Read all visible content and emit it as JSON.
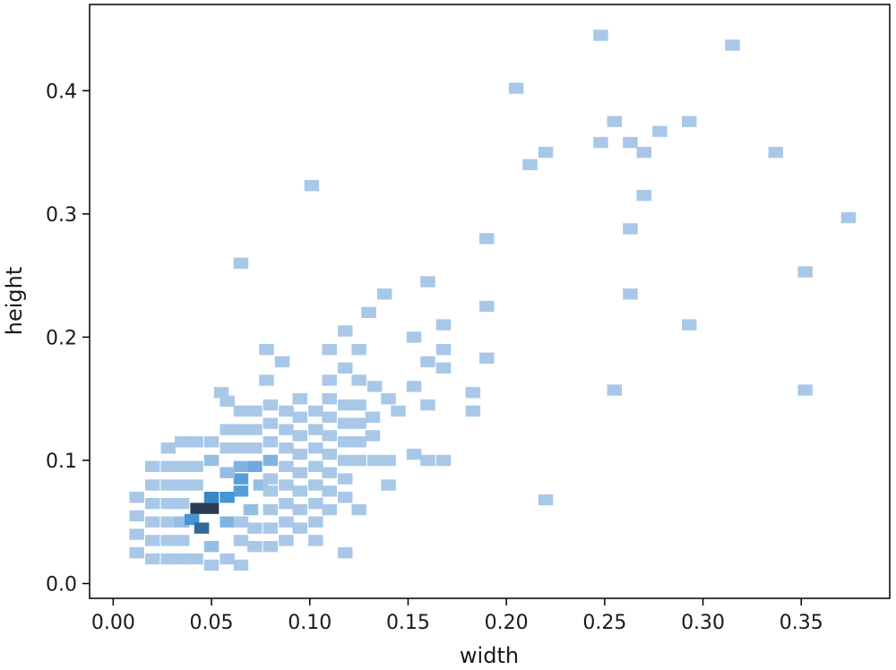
{
  "chart_data": {
    "type": "heatmap",
    "subtype": "bivariate-histogram",
    "title": "",
    "xlabel": "width",
    "ylabel": "height",
    "xlim": [
      -0.012,
      0.395
    ],
    "ylim": [
      -0.012,
      0.47
    ],
    "xticks": [
      0.0,
      0.05,
      0.1,
      0.15,
      0.2,
      0.25,
      0.3,
      0.35
    ],
    "xtick_labels": [
      "0.00",
      "0.05",
      "0.10",
      "0.15",
      "0.20",
      "0.25",
      "0.30",
      "0.35"
    ],
    "yticks": [
      0.0,
      0.1,
      0.2,
      0.3,
      0.4
    ],
    "ytick_labels": [
      "0.0",
      "0.1",
      "0.2",
      "0.3",
      "0.4"
    ],
    "bin_size": {
      "width": 0.0075,
      "height": 0.009
    },
    "grid": false,
    "legend": false,
    "colormap": {
      "low": "#a9c8e8",
      "mid": "#3a8fd4",
      "high": "#2b3a55"
    },
    "cells": [
      {
        "x": 0.012,
        "y": 0.025,
        "count": 1
      },
      {
        "x": 0.012,
        "y": 0.04,
        "count": 1
      },
      {
        "x": 0.012,
        "y": 0.055,
        "count": 1
      },
      {
        "x": 0.012,
        "y": 0.07,
        "count": 1
      },
      {
        "x": 0.02,
        "y": 0.02,
        "count": 1
      },
      {
        "x": 0.02,
        "y": 0.035,
        "count": 1
      },
      {
        "x": 0.02,
        "y": 0.05,
        "count": 1
      },
      {
        "x": 0.02,
        "y": 0.065,
        "count": 1
      },
      {
        "x": 0.02,
        "y": 0.08,
        "count": 1
      },
      {
        "x": 0.02,
        "y": 0.095,
        "count": 1
      },
      {
        "x": 0.028,
        "y": 0.02,
        "count": 1
      },
      {
        "x": 0.028,
        "y": 0.035,
        "count": 1
      },
      {
        "x": 0.028,
        "y": 0.05,
        "count": 1
      },
      {
        "x": 0.028,
        "y": 0.065,
        "count": 1
      },
      {
        "x": 0.028,
        "y": 0.08,
        "count": 1
      },
      {
        "x": 0.028,
        "y": 0.095,
        "count": 1
      },
      {
        "x": 0.028,
        "y": 0.11,
        "count": 1
      },
      {
        "x": 0.035,
        "y": 0.02,
        "count": 1
      },
      {
        "x": 0.035,
        "y": 0.035,
        "count": 1
      },
      {
        "x": 0.035,
        "y": 0.05,
        "count": 2
      },
      {
        "x": 0.035,
        "y": 0.065,
        "count": 1
      },
      {
        "x": 0.035,
        "y": 0.08,
        "count": 1
      },
      {
        "x": 0.035,
        "y": 0.095,
        "count": 1
      },
      {
        "x": 0.035,
        "y": 0.115,
        "count": 1
      },
      {
        "x": 0.04,
        "y": 0.052,
        "count": 6
      },
      {
        "x": 0.045,
        "y": 0.045,
        "count": 9
      },
      {
        "x": 0.043,
        "y": 0.061,
        "count": 12
      },
      {
        "x": 0.05,
        "y": 0.061,
        "count": 12
      },
      {
        "x": 0.05,
        "y": 0.07,
        "count": 7
      },
      {
        "x": 0.058,
        "y": 0.07,
        "count": 6
      },
      {
        "x": 0.058,
        "y": 0.05,
        "count": 3
      },
      {
        "x": 0.065,
        "y": 0.075,
        "count": 5
      },
      {
        "x": 0.065,
        "y": 0.085,
        "count": 5
      },
      {
        "x": 0.072,
        "y": 0.095,
        "count": 4
      },
      {
        "x": 0.065,
        "y": 0.095,
        "count": 3
      },
      {
        "x": 0.08,
        "y": 0.1,
        "count": 3
      },
      {
        "x": 0.05,
        "y": 0.03,
        "count": 2
      },
      {
        "x": 0.05,
        "y": 0.1,
        "count": 2
      },
      {
        "x": 0.058,
        "y": 0.09,
        "count": 2
      },
      {
        "x": 0.07,
        "y": 0.06,
        "count": 2
      },
      {
        "x": 0.075,
        "y": 0.08,
        "count": 2
      },
      {
        "x": 0.042,
        "y": 0.02,
        "count": 1
      },
      {
        "x": 0.05,
        "y": 0.015,
        "count": 1
      },
      {
        "x": 0.058,
        "y": 0.02,
        "count": 1
      },
      {
        "x": 0.065,
        "y": 0.015,
        "count": 1
      },
      {
        "x": 0.042,
        "y": 0.08,
        "count": 1
      },
      {
        "x": 0.042,
        "y": 0.095,
        "count": 1
      },
      {
        "x": 0.042,
        "y": 0.115,
        "count": 1
      },
      {
        "x": 0.05,
        "y": 0.115,
        "count": 1
      },
      {
        "x": 0.058,
        "y": 0.11,
        "count": 1
      },
      {
        "x": 0.058,
        "y": 0.125,
        "count": 1
      },
      {
        "x": 0.065,
        "y": 0.035,
        "count": 1
      },
      {
        "x": 0.065,
        "y": 0.05,
        "count": 1
      },
      {
        "x": 0.065,
        "y": 0.11,
        "count": 1
      },
      {
        "x": 0.065,
        "y": 0.125,
        "count": 1
      },
      {
        "x": 0.065,
        "y": 0.14,
        "count": 1
      },
      {
        "x": 0.072,
        "y": 0.03,
        "count": 1
      },
      {
        "x": 0.072,
        "y": 0.045,
        "count": 1
      },
      {
        "x": 0.072,
        "y": 0.11,
        "count": 1
      },
      {
        "x": 0.072,
        "y": 0.125,
        "count": 1
      },
      {
        "x": 0.072,
        "y": 0.14,
        "count": 1
      },
      {
        "x": 0.08,
        "y": 0.03,
        "count": 1
      },
      {
        "x": 0.08,
        "y": 0.045,
        "count": 1
      },
      {
        "x": 0.08,
        "y": 0.06,
        "count": 1
      },
      {
        "x": 0.08,
        "y": 0.075,
        "count": 1
      },
      {
        "x": 0.08,
        "y": 0.085,
        "count": 1
      },
      {
        "x": 0.08,
        "y": 0.115,
        "count": 1
      },
      {
        "x": 0.08,
        "y": 0.13,
        "count": 1
      },
      {
        "x": 0.08,
        "y": 0.145,
        "count": 1
      },
      {
        "x": 0.088,
        "y": 0.035,
        "count": 1
      },
      {
        "x": 0.088,
        "y": 0.05,
        "count": 1
      },
      {
        "x": 0.088,
        "y": 0.065,
        "count": 1
      },
      {
        "x": 0.088,
        "y": 0.08,
        "count": 1
      },
      {
        "x": 0.088,
        "y": 0.095,
        "count": 1
      },
      {
        "x": 0.088,
        "y": 0.11,
        "count": 1
      },
      {
        "x": 0.088,
        "y": 0.125,
        "count": 1
      },
      {
        "x": 0.088,
        "y": 0.14,
        "count": 1
      },
      {
        "x": 0.095,
        "y": 0.045,
        "count": 1
      },
      {
        "x": 0.095,
        "y": 0.06,
        "count": 1
      },
      {
        "x": 0.095,
        "y": 0.075,
        "count": 1
      },
      {
        "x": 0.095,
        "y": 0.09,
        "count": 1
      },
      {
        "x": 0.095,
        "y": 0.105,
        "count": 1
      },
      {
        "x": 0.095,
        "y": 0.12,
        "count": 1
      },
      {
        "x": 0.095,
        "y": 0.135,
        "count": 1
      },
      {
        "x": 0.095,
        "y": 0.15,
        "count": 1
      },
      {
        "x": 0.103,
        "y": 0.035,
        "count": 1
      },
      {
        "x": 0.103,
        "y": 0.05,
        "count": 1
      },
      {
        "x": 0.103,
        "y": 0.065,
        "count": 1
      },
      {
        "x": 0.103,
        "y": 0.08,
        "count": 1
      },
      {
        "x": 0.103,
        "y": 0.095,
        "count": 1
      },
      {
        "x": 0.103,
        "y": 0.11,
        "count": 1
      },
      {
        "x": 0.103,
        "y": 0.125,
        "count": 1
      },
      {
        "x": 0.103,
        "y": 0.14,
        "count": 1
      },
      {
        "x": 0.11,
        "y": 0.06,
        "count": 1
      },
      {
        "x": 0.11,
        "y": 0.075,
        "count": 1
      },
      {
        "x": 0.11,
        "y": 0.09,
        "count": 1
      },
      {
        "x": 0.11,
        "y": 0.105,
        "count": 1
      },
      {
        "x": 0.11,
        "y": 0.12,
        "count": 1
      },
      {
        "x": 0.11,
        "y": 0.135,
        "count": 1
      },
      {
        "x": 0.11,
        "y": 0.15,
        "count": 1
      },
      {
        "x": 0.118,
        "y": 0.07,
        "count": 1
      },
      {
        "x": 0.118,
        "y": 0.085,
        "count": 1
      },
      {
        "x": 0.118,
        "y": 0.1,
        "count": 1
      },
      {
        "x": 0.118,
        "y": 0.115,
        "count": 1
      },
      {
        "x": 0.118,
        "y": 0.13,
        "count": 1
      },
      {
        "x": 0.118,
        "y": 0.145,
        "count": 1
      },
      {
        "x": 0.125,
        "y": 0.115,
        "count": 1
      },
      {
        "x": 0.125,
        "y": 0.13,
        "count": 1
      },
      {
        "x": 0.125,
        "y": 0.145,
        "count": 1
      },
      {
        "x": 0.132,
        "y": 0.12,
        "count": 1
      },
      {
        "x": 0.132,
        "y": 0.135,
        "count": 1
      },
      {
        "x": 0.065,
        "y": 0.26,
        "count": 1
      },
      {
        "x": 0.101,
        "y": 0.323,
        "count": 1
      },
      {
        "x": 0.055,
        "y": 0.155,
        "count": 1
      },
      {
        "x": 0.058,
        "y": 0.148,
        "count": 1
      },
      {
        "x": 0.078,
        "y": 0.19,
        "count": 1
      },
      {
        "x": 0.078,
        "y": 0.165,
        "count": 1
      },
      {
        "x": 0.086,
        "y": 0.18,
        "count": 1
      },
      {
        "x": 0.11,
        "y": 0.19,
        "count": 1
      },
      {
        "x": 0.118,
        "y": 0.205,
        "count": 1
      },
      {
        "x": 0.125,
        "y": 0.19,
        "count": 1
      },
      {
        "x": 0.118,
        "y": 0.175,
        "count": 1
      },
      {
        "x": 0.11,
        "y": 0.165,
        "count": 1
      },
      {
        "x": 0.125,
        "y": 0.165,
        "count": 1
      },
      {
        "x": 0.133,
        "y": 0.16,
        "count": 1
      },
      {
        "x": 0.13,
        "y": 0.22,
        "count": 1
      },
      {
        "x": 0.138,
        "y": 0.235,
        "count": 1
      },
      {
        "x": 0.14,
        "y": 0.15,
        "count": 1
      },
      {
        "x": 0.145,
        "y": 0.14,
        "count": 1
      },
      {
        "x": 0.153,
        "y": 0.16,
        "count": 1
      },
      {
        "x": 0.153,
        "y": 0.2,
        "count": 1
      },
      {
        "x": 0.16,
        "y": 0.245,
        "count": 1
      },
      {
        "x": 0.16,
        "y": 0.18,
        "count": 1
      },
      {
        "x": 0.16,
        "y": 0.145,
        "count": 1
      },
      {
        "x": 0.168,
        "y": 0.19,
        "count": 1
      },
      {
        "x": 0.168,
        "y": 0.21,
        "count": 1
      },
      {
        "x": 0.168,
        "y": 0.175,
        "count": 1
      },
      {
        "x": 0.183,
        "y": 0.155,
        "count": 1
      },
      {
        "x": 0.183,
        "y": 0.14,
        "count": 1
      },
      {
        "x": 0.125,
        "y": 0.06,
        "count": 1
      },
      {
        "x": 0.125,
        "y": 0.1,
        "count": 1
      },
      {
        "x": 0.133,
        "y": 0.1,
        "count": 1
      },
      {
        "x": 0.14,
        "y": 0.1,
        "count": 1
      },
      {
        "x": 0.14,
        "y": 0.08,
        "count": 1
      },
      {
        "x": 0.153,
        "y": 0.105,
        "count": 1
      },
      {
        "x": 0.16,
        "y": 0.1,
        "count": 1
      },
      {
        "x": 0.168,
        "y": 0.1,
        "count": 1
      },
      {
        "x": 0.118,
        "y": 0.025,
        "count": 1
      },
      {
        "x": 0.19,
        "y": 0.28,
        "count": 1
      },
      {
        "x": 0.19,
        "y": 0.225,
        "count": 1
      },
      {
        "x": 0.19,
        "y": 0.183,
        "count": 1
      },
      {
        "x": 0.205,
        "y": 0.402,
        "count": 1
      },
      {
        "x": 0.212,
        "y": 0.34,
        "count": 1
      },
      {
        "x": 0.22,
        "y": 0.35,
        "count": 1
      },
      {
        "x": 0.22,
        "y": 0.068,
        "count": 1
      },
      {
        "x": 0.248,
        "y": 0.445,
        "count": 1
      },
      {
        "x": 0.248,
        "y": 0.358,
        "count": 1
      },
      {
        "x": 0.255,
        "y": 0.375,
        "count": 1
      },
      {
        "x": 0.255,
        "y": 0.157,
        "count": 1
      },
      {
        "x": 0.263,
        "y": 0.358,
        "count": 1
      },
      {
        "x": 0.263,
        "y": 0.288,
        "count": 1
      },
      {
        "x": 0.263,
        "y": 0.235,
        "count": 1
      },
      {
        "x": 0.27,
        "y": 0.35,
        "count": 1
      },
      {
        "x": 0.27,
        "y": 0.315,
        "count": 1
      },
      {
        "x": 0.278,
        "y": 0.367,
        "count": 1
      },
      {
        "x": 0.293,
        "y": 0.375,
        "count": 1
      },
      {
        "x": 0.293,
        "y": 0.21,
        "count": 1
      },
      {
        "x": 0.315,
        "y": 0.437,
        "count": 1
      },
      {
        "x": 0.337,
        "y": 0.35,
        "count": 1
      },
      {
        "x": 0.352,
        "y": 0.253,
        "count": 1
      },
      {
        "x": 0.352,
        "y": 0.157,
        "count": 1
      },
      {
        "x": 0.374,
        "y": 0.297,
        "count": 1
      }
    ]
  }
}
